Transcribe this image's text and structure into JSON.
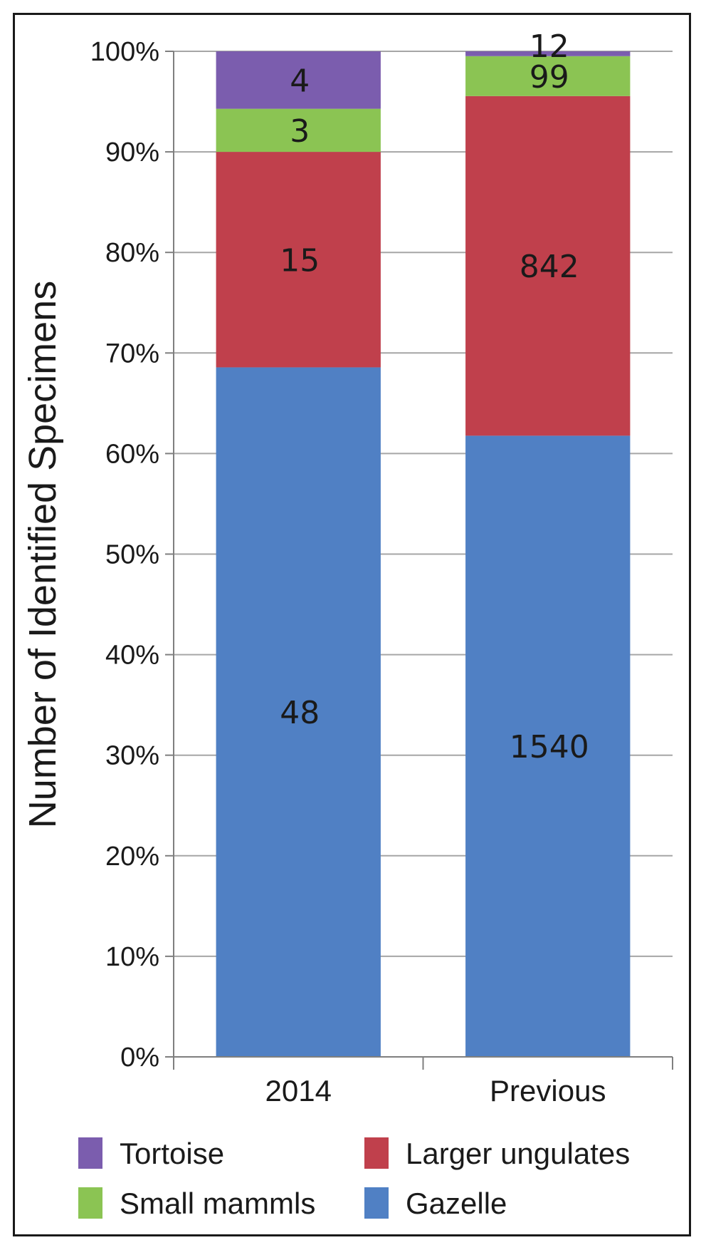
{
  "chart_data": {
    "type": "bar",
    "stacked": true,
    "normalized": true,
    "categories": [
      "2014",
      "Previous"
    ],
    "series": [
      {
        "name": "Gazelle",
        "values": [
          48,
          1540
        ],
        "color": "#5080C4"
      },
      {
        "name": "Larger ungulates",
        "values": [
          15,
          842
        ],
        "color": "#C0404C"
      },
      {
        "name": "Small mammls",
        "values": [
          3,
          99
        ],
        "color": "#8BC453"
      },
      {
        "name": "Tortoise",
        "values": [
          4,
          12
        ],
        "color": "#7B5DAE"
      }
    ],
    "ylabel": "Number of Identified Specimens",
    "xlabel": "",
    "title": "",
    "ylim": [
      0,
      100
    ],
    "yticks": [
      "0%",
      "10%",
      "20%",
      "30%",
      "40%",
      "50%",
      "60%",
      "70%",
      "80%",
      "90%",
      "100%"
    ],
    "grid": true,
    "legend_position": "bottom",
    "legend_order": [
      "Tortoise",
      "Larger ungulates",
      "Small mammls",
      "Gazelle"
    ]
  }
}
